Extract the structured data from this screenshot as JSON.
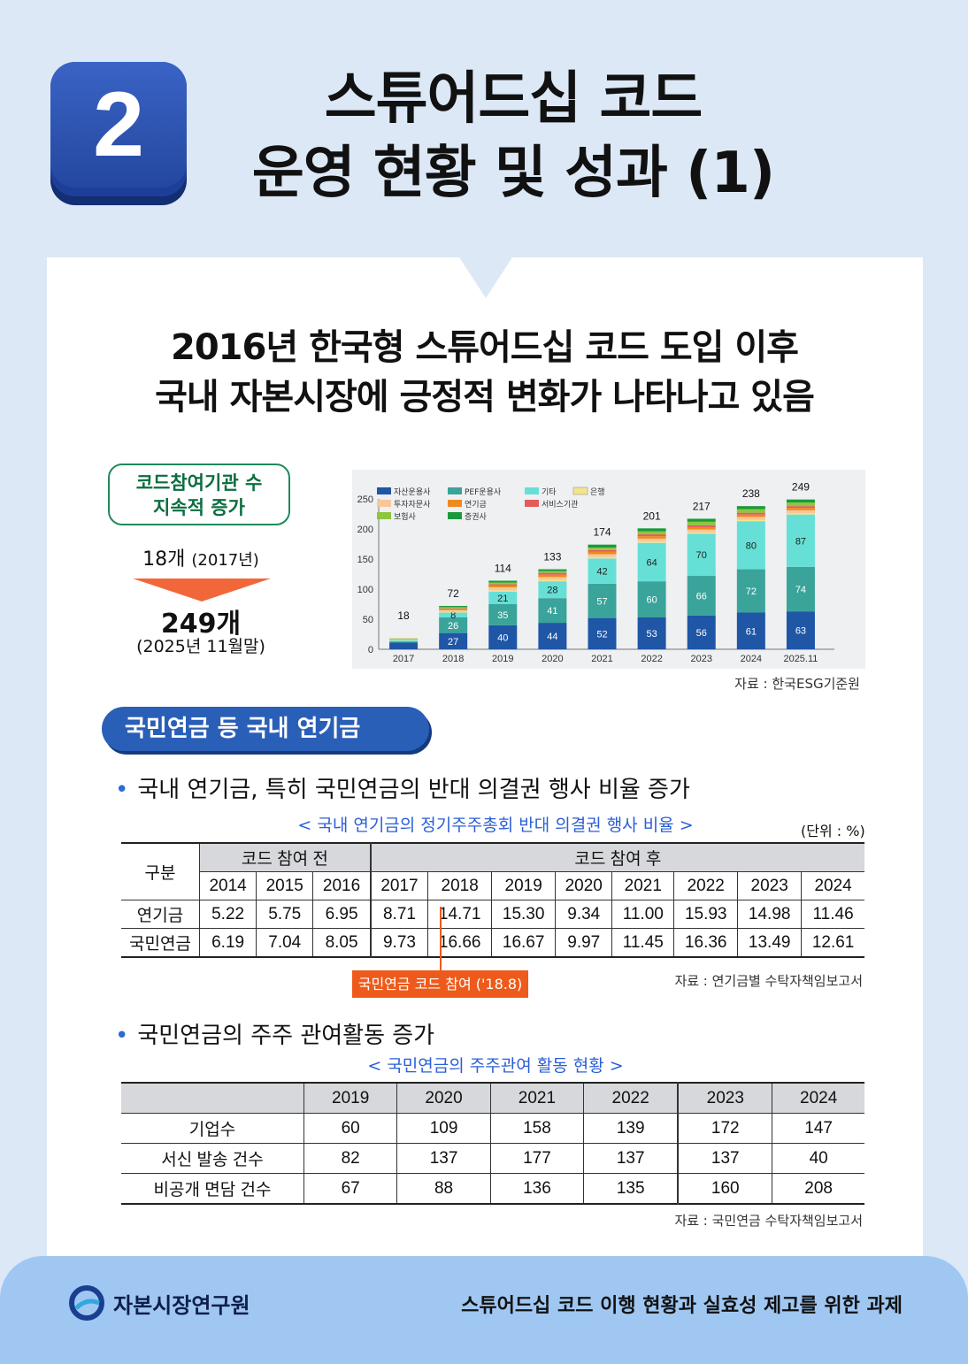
{
  "header": {
    "number": "2",
    "title_line1": "스튜어드십 코드",
    "title_line2": "운영 현황 및 성과 (1)"
  },
  "headline": {
    "line1": "2016년 한국형 스튜어드십 코드 도입 이후",
    "line2": "국내 자본시장에 긍정적 변화가 나타나고 있음"
  },
  "kpi": {
    "box_line1": "코드참여기관 수",
    "box_line2": "지속적 증가",
    "from_value": "18개",
    "from_year": "(2017년)",
    "to_value": "249개",
    "to_date": "(2025년 11월말)"
  },
  "chart_data": {
    "type": "bar",
    "stacked": true,
    "categories": [
      "2017",
      "2018",
      "2019",
      "2020",
      "2021",
      "2022",
      "2023",
      "2024",
      "2025.11"
    ],
    "totals": [
      18,
      72,
      114,
      133,
      174,
      201,
      217,
      238,
      249
    ],
    "ylim": [
      0,
      250
    ],
    "yticks": [
      0,
      50,
      100,
      150,
      200,
      250
    ],
    "legend_placement": "top-left",
    "grid": false,
    "series": [
      {
        "name": "자산운용사",
        "color": "#1f56a6",
        "values": [
          11,
          27,
          40,
          44,
          52,
          53,
          56,
          61,
          63
        ],
        "labels": [
          "",
          "27",
          "40",
          "44",
          "52",
          "53",
          "56",
          "61",
          "63"
        ]
      },
      {
        "name": "PEF운용사",
        "color": "#3aa39a",
        "values": [
          2,
          26,
          35,
          41,
          57,
          60,
          66,
          72,
          74
        ],
        "labels": [
          "",
          "26",
          "35",
          "41",
          "57",
          "60",
          "66",
          "72",
          "74"
        ]
      },
      {
        "name": "기타",
        "color": "#66e0d7",
        "values": [
          2,
          8,
          21,
          28,
          42,
          64,
          70,
          80,
          87
        ],
        "labels": [
          "",
          "8",
          "21",
          "28",
          "42",
          "64",
          "70",
          "80",
          "87"
        ]
      },
      {
        "name": "은행",
        "color": "#f4e48a",
        "values": [
          1,
          1,
          2,
          2,
          2,
          2,
          2,
          2,
          2
        ]
      },
      {
        "name": "투자자문사",
        "color": "#f7c79b",
        "values": [
          0,
          3,
          5,
          5,
          5,
          5,
          5,
          5,
          5
        ]
      },
      {
        "name": "연기금",
        "color": "#f08a1e",
        "values": [
          1,
          2,
          3,
          4,
          4,
          4,
          4,
          4,
          4
        ]
      },
      {
        "name": "서비스기관",
        "color": "#e45b5b",
        "values": [
          0,
          1,
          2,
          3,
          3,
          3,
          3,
          3,
          3
        ]
      },
      {
        "name": "보험사",
        "color": "#8dc63f",
        "values": [
          1,
          2,
          3,
          3,
          4,
          5,
          6,
          6,
          6
        ]
      },
      {
        "name": "증권사",
        "color": "#1a9a3a",
        "values": [
          0,
          2,
          3,
          3,
          5,
          5,
          5,
          5,
          5
        ]
      }
    ],
    "source": "자료 : 한국ESG기준원"
  },
  "section": {
    "pill": "국민연금 등 국내 연기금"
  },
  "bullet1": "국내 연기금, 특히 국민연금의 반대 의결권 행사 비율 증가",
  "table1": {
    "caption": "< 국내 연기금의 정기주주총회 반대 의결권 행사 비율 >",
    "unit": "(단위 : %)",
    "corner": "구분",
    "group_before": "코드 참여 전",
    "group_after": "코드 참여 후",
    "years": [
      "2014",
      "2015",
      "2016",
      "2017",
      "2018",
      "2019",
      "2020",
      "2021",
      "2022",
      "2023",
      "2024"
    ],
    "rows": [
      {
        "label": "연기금",
        "values": [
          "5.22",
          "5.75",
          "6.95",
          "8.71",
          "14.71",
          "15.30",
          "9.34",
          "11.00",
          "15.93",
          "14.98",
          "11.46"
        ]
      },
      {
        "label": "국민연금",
        "values": [
          "6.19",
          "7.04",
          "8.05",
          "9.73",
          "16.66",
          "16.67",
          "9.97",
          "11.45",
          "16.36",
          "13.49",
          "12.61"
        ]
      }
    ],
    "marker": "국민연금 코드 참여 ('18.8)",
    "source": "자료 : 연기금별 수탁자책임보고서"
  },
  "bullet2": "국민연금의 주주 관여활동 증가",
  "table2": {
    "caption": "< 국민연금의 주주관여 활동 현황 >",
    "years": [
      "2019",
      "2020",
      "2021",
      "2022",
      "2023",
      "2024"
    ],
    "rows": [
      {
        "label": "기업수",
        "values": [
          "60",
          "109",
          "158",
          "139",
          "172",
          "147"
        ]
      },
      {
        "label": "서신 발송 건수",
        "values": [
          "82",
          "137",
          "177",
          "137",
          "137",
          "40"
        ]
      },
      {
        "label": "비공개 면담 건수",
        "values": [
          "67",
          "88",
          "136",
          "135",
          "160",
          "208"
        ]
      }
    ],
    "source": "자료 : 국민연금 수탁자책임보고서"
  },
  "footer": {
    "org": "자본시장연구원",
    "report_title": "스튜어드십 코드 이행 현황과 실효성 제고를 위한 과제",
    "logo_icon": "kcmi-logo-icon"
  }
}
